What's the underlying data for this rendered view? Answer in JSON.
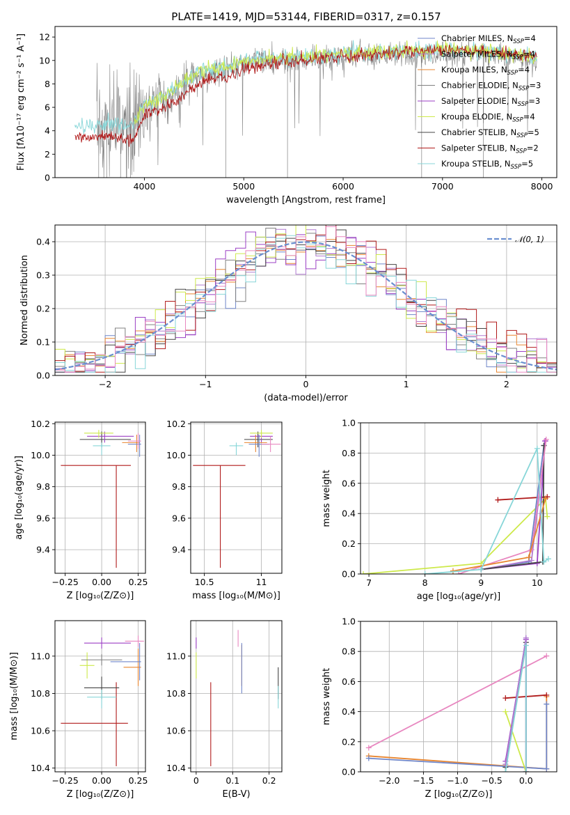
{
  "colors": {
    "chabrier_miles": "#6f86c9",
    "salpeter_miles": "#b07ad0",
    "kroupa_miles": "#e8852e",
    "chabrier_elodie": "#808080",
    "salpeter_elodie": "#9b3fc4",
    "kroupa_elodie": "#cde94a",
    "chabrier_stelib": "#444444",
    "salpeter_stelib": "#b01a1a",
    "kroupa_stelib": "#87d6d8",
    "pink": "#e887c0",
    "gauss": "#6a8fd0"
  },
  "chart_data": [
    {
      "id": "spectrum",
      "type": "line",
      "title": "PLATE=1419, MJD=53144, FIBERID=0317, z=0.157",
      "xlabel": "wavelength [Angstrom, rest frame]",
      "ylabel": "Flux [fλ10⁻¹⁷ erg cm⁻² s⁻¹ A⁻¹]",
      "xlim": [
        3100,
        8150
      ],
      "ylim": [
        0,
        12.9
      ],
      "xticks": [
        4000,
        5000,
        6000,
        7000,
        8000
      ],
      "yticks": [
        0,
        2,
        4,
        6,
        8,
        10,
        12
      ],
      "legend_position": "right",
      "legend": [
        {
          "label": "Chabrier MILES, N",
          "sub": "SSP",
          "suffix": "=4",
          "color_key": "chabrier_miles"
        },
        {
          "label": "Salpeter MILES, N",
          "sub": "SSP",
          "suffix": "=4",
          "color_key": "salpeter_miles"
        },
        {
          "label": "Kroupa MILES, N",
          "sub": "SSP",
          "suffix": "=4",
          "color_key": "kroupa_miles"
        },
        {
          "label": "Chabrier ELODIE, N",
          "sub": "SSP",
          "suffix": "=3",
          "color_key": "chabrier_elodie"
        },
        {
          "label": "Salpeter ELODIE, N",
          "sub": "SSP",
          "suffix": "=3",
          "color_key": "salpeter_elodie"
        },
        {
          "label": "Kroupa ELODIE, N",
          "sub": "SSP",
          "suffix": "=4",
          "color_key": "kroupa_elodie"
        },
        {
          "label": "Chabrier STELIB, N",
          "sub": "SSP",
          "suffix": "=5",
          "color_key": "chabrier_stelib"
        },
        {
          "label": "Salpeter STELIB, N",
          "sub": "SSP",
          "suffix": "=2",
          "color_key": "salpeter_stelib"
        },
        {
          "label": "Kroupa STELIB, N",
          "sub": "SSP",
          "suffix": "=5",
          "color_key": "kroupa_stelib"
        }
      ],
      "model_trend": {
        "x": [
          3300,
          3500,
          3700,
          3900,
          4000,
          4200,
          4400,
          4600,
          4800,
          5000,
          5200,
          5500,
          5800,
          6000,
          6300,
          6600,
          6900,
          7200,
          7500,
          7800,
          7950
        ],
        "y_stelib_salpeter": [
          3.4,
          3.5,
          3.4,
          3.3,
          5.4,
          6.0,
          7.0,
          8.2,
          8.6,
          9.2,
          9.6,
          9.9,
          10.2,
          10.4,
          10.5,
          10.7,
          10.8,
          10.9,
          10.6,
          10.5,
          10.3
        ],
        "y_kroupa_stelib": [
          4.3,
          4.4,
          4.6,
          4.6,
          6.2,
          7.0,
          8.2,
          9.2,
          9.4,
          10.0,
          10.2,
          10.3,
          10.4,
          10.6,
          10.7,
          10.8,
          10.9,
          10.9,
          10.7,
          10.4,
          10.3
        ]
      }
    },
    {
      "id": "residuals",
      "type": "histogram",
      "xlabel": "(data-model)/error",
      "ylabel": "Normed distribution",
      "xlim": [
        -2.5,
        2.5
      ],
      "ylim": [
        0,
        0.45
      ],
      "xticks": [
        -2,
        -1,
        0,
        1,
        2
      ],
      "yticks": [
        0.0,
        0.1,
        0.2,
        0.3,
        0.4
      ],
      "legend_position": "top-right",
      "legend_label": "𝒩(0, 1)",
      "bin_width": 0.1
    },
    {
      "id": "age_vs_Z",
      "type": "errorbar",
      "xlabel": "Z [log₁₀(Z/Z⊙)]",
      "ylabel": "age  [log₁₀(age/yr)]",
      "xlim": [
        -0.32,
        0.3
      ],
      "ylim": [
        9.25,
        10.21
      ],
      "xticks": [
        -0.25,
        0.0,
        0.25
      ],
      "xticklabels": [
        "−0.25",
        "0.00",
        "0.25"
      ],
      "yticks": [
        9.4,
        9.6,
        9.8,
        10.0,
        10.2
      ],
      "points": [
        {
          "x": 0.1,
          "y": 9.935,
          "xerr": [
            0.38,
            0.1
          ],
          "yerr": [
            0.65,
            0.0
          ],
          "color_key": "salpeter_stelib"
        },
        {
          "x": 0.0,
          "y": 10.1,
          "xerr": [
            0.15,
            0.2
          ],
          "yerr": [
            0.05,
            0.05
          ],
          "color_key": "chabrier_stelib"
        },
        {
          "x": 0.02,
          "y": 10.12,
          "xerr": [
            0.12,
            0.2
          ],
          "yerr": [
            0.04,
            0.03
          ],
          "color_key": "salpeter_elodie"
        },
        {
          "x": -0.02,
          "y": 10.14,
          "xerr": [
            0.1,
            0.1
          ],
          "yerr": [
            0.03,
            0.02
          ],
          "color_key": "kroupa_elodie"
        },
        {
          "x": 0.24,
          "y": 10.08,
          "xerr": [
            0.1,
            0.02
          ],
          "yerr": [
            0.06,
            0.05
          ],
          "color_key": "kroupa_miles"
        },
        {
          "x": 0.26,
          "y": 10.07,
          "xerr": [
            0.08,
            0.01
          ],
          "yerr": [
            0.08,
            0.06
          ],
          "color_key": "chabrier_miles"
        },
        {
          "x": 0.25,
          "y": 10.09,
          "xerr": [
            0.07,
            0.02
          ],
          "yerr": [
            0.05,
            0.05
          ],
          "color_key": "pink"
        },
        {
          "x": 0.0,
          "y": 10.06,
          "xerr": [
            0.06,
            0.06
          ],
          "yerr": [
            0.06,
            0.02
          ],
          "color_key": "kroupa_stelib"
        }
      ]
    },
    {
      "id": "age_vs_mass",
      "type": "errorbar",
      "xlabel": "mass [log₁₀(M/M⊙)]",
      "xlim": [
        10.38,
        11.18
      ],
      "ylim": [
        9.25,
        10.21
      ],
      "xticks": [
        10.5,
        11.0
      ],
      "yticks": [
        9.4,
        9.6,
        9.8,
        10.0,
        10.2
      ],
      "points": [
        {
          "x": 10.64,
          "y": 9.935,
          "xerr": [
            0.24,
            0.22
          ],
          "yerr": [
            0.65,
            0.0
          ],
          "color_key": "salpeter_stelib"
        },
        {
          "x": 10.97,
          "y": 10.1,
          "xerr": [
            0.12,
            0.13
          ],
          "yerr": [
            0.05,
            0.05
          ],
          "color_key": "chabrier_stelib"
        },
        {
          "x": 11.0,
          "y": 10.12,
          "xerr": [
            0.1,
            0.1
          ],
          "yerr": [
            0.04,
            0.03
          ],
          "color_key": "salpeter_elodie"
        },
        {
          "x": 11.0,
          "y": 10.14,
          "xerr": [
            0.1,
            0.1
          ],
          "yerr": [
            0.03,
            0.02
          ],
          "color_key": "kroupa_elodie"
        },
        {
          "x": 10.95,
          "y": 10.08,
          "xerr": [
            0.1,
            0.1
          ],
          "yerr": [
            0.06,
            0.05
          ],
          "color_key": "kroupa_miles"
        },
        {
          "x": 10.98,
          "y": 10.07,
          "xerr": [
            0.09,
            0.09
          ],
          "yerr": [
            0.08,
            0.06
          ],
          "color_key": "chabrier_miles"
        },
        {
          "x": 11.08,
          "y": 10.07,
          "xerr": [
            0.08,
            0.09
          ],
          "yerr": [
            0.05,
            0.05
          ],
          "color_key": "pink"
        },
        {
          "x": 10.78,
          "y": 10.06,
          "xerr": [
            0.06,
            0.06
          ],
          "yerr": [
            0.06,
            0.02
          ],
          "color_key": "kroupa_stelib"
        }
      ]
    },
    {
      "id": "massweight_vs_age",
      "type": "line",
      "xlabel": "age  [log₁₀(age/yr)]",
      "ylabel": "mass weight",
      "xlim": [
        6.85,
        10.35
      ],
      "ylim": [
        0,
        1.0
      ],
      "xticks": [
        7,
        8,
        9,
        10
      ],
      "yticks": [
        0.0,
        0.2,
        0.4,
        0.6,
        0.8,
        1.0
      ],
      "series": [
        {
          "color_key": "kroupa_elodie",
          "x": [
            6.9,
            9.0,
            10.15,
            10.18
          ],
          "y": [
            0.0,
            0.07,
            0.5,
            0.38
          ]
        },
        {
          "color_key": "salpeter_stelib",
          "x": [
            9.3,
            10.18
          ],
          "y": [
            0.49,
            0.51
          ]
        },
        {
          "color_key": "chabrier_miles",
          "x": [
            9.0,
            9.85,
            10.12
          ],
          "y": [
            0.03,
            0.08,
            0.85
          ]
        },
        {
          "color_key": "salpeter_miles",
          "x": [
            9.0,
            9.9,
            10.15
          ],
          "y": [
            0.03,
            0.09,
            0.88
          ]
        },
        {
          "color_key": "salpeter_elodie",
          "x": [
            9.0,
            10.0,
            10.14
          ],
          "y": [
            0.03,
            0.07,
            0.88
          ]
        },
        {
          "color_key": "chabrier_stelib",
          "x": [
            9.0,
            10.1,
            10.12
          ],
          "y": [
            0.03,
            0.08,
            0.85
          ]
        },
        {
          "color_key": "pink",
          "x": [
            8.6,
            9.9,
            10.16
          ],
          "y": [
            0.0,
            0.16,
            0.89
          ]
        },
        {
          "color_key": "kroupa_miles",
          "x": [
            8.5,
            9.85,
            10.15
          ],
          "y": [
            0.02,
            0.11,
            0.5
          ]
        },
        {
          "color_key": "kroupa_stelib",
          "x": [
            8.0,
            9.0,
            10.0,
            10.12,
            10.2
          ],
          "y": [
            0.0,
            0.03,
            0.83,
            0.08,
            0.1
          ]
        }
      ]
    },
    {
      "id": "mass_vs_Z",
      "type": "errorbar",
      "xlabel": "Z [log₁₀(Z/Z⊙)]",
      "ylabel": "mass [log₁₀(M/M⊙)]",
      "xlim": [
        -0.32,
        0.3
      ],
      "ylim": [
        10.38,
        11.19
      ],
      "xticks": [
        -0.25,
        0.0,
        0.25
      ],
      "xticklabels": [
        "−0.25",
        "0.00",
        "0.25"
      ],
      "yticks": [
        10.4,
        10.6,
        10.8,
        11.0
      ],
      "points": [
        {
          "x": 0.1,
          "y": 10.64,
          "xerr": [
            0.38,
            0.08
          ],
          "yerr": [
            0.23,
            0.22
          ],
          "color_key": "salpeter_stelib"
        },
        {
          "x": 0.0,
          "y": 10.83,
          "xerr": [
            0.12,
            0.12
          ],
          "yerr": [
            0.06,
            0.06
          ],
          "color_key": "chabrier_stelib"
        },
        {
          "x": 0.0,
          "y": 11.07,
          "xerr": [
            0.12,
            0.2
          ],
          "yerr": [
            0.03,
            0.03
          ],
          "color_key": "salpeter_elodie"
        },
        {
          "x": -0.1,
          "y": 10.95,
          "xerr": [
            0.05,
            0.05
          ],
          "yerr": [
            0.07,
            0.07
          ],
          "color_key": "kroupa_elodie"
        },
        {
          "x": 0.25,
          "y": 10.94,
          "xerr": [
            0.1,
            0.02
          ],
          "yerr": [
            0.1,
            0.1
          ],
          "color_key": "kroupa_miles"
        },
        {
          "x": 0.26,
          "y": 10.97,
          "xerr": [
            0.2,
            0.01
          ],
          "yerr": [
            0.1,
            0.1
          ],
          "color_key": "chabrier_miles"
        },
        {
          "x": 0.25,
          "y": 11.08,
          "xerr": [
            0.09,
            0.04
          ],
          "yerr": [
            0.03,
            0.03
          ],
          "color_key": "pink"
        },
        {
          "x": 0.0,
          "y": 10.78,
          "xerr": [
            0.1,
            0.1
          ],
          "yerr": [
            0.06,
            0.04
          ],
          "color_key": "kroupa_stelib"
        },
        {
          "x": 0.0,
          "y": 10.98,
          "xerr": [
            0.14,
            0.14
          ],
          "yerr": [
            0.03,
            0.03
          ],
          "color_key": "chabrier_elodie"
        }
      ]
    },
    {
      "id": "mass_vs_ebv",
      "type": "errorbar",
      "xlabel": "E(B-V)",
      "xlim": [
        -0.015,
        0.235
      ],
      "ylim": [
        10.38,
        11.19
      ],
      "xticks": [
        0.0,
        0.1,
        0.2
      ],
      "yticks": [
        10.4,
        10.6,
        10.8,
        11.0
      ],
      "points": [
        {
          "x": 0.04,
          "y": 10.64,
          "xerr": [
            0,
            0
          ],
          "yerr": [
            0.23,
            0.22
          ],
          "color_key": "salpeter_stelib"
        },
        {
          "x": 0.225,
          "y": 10.83,
          "xerr": [
            0,
            0
          ],
          "yerr": [
            0.06,
            0.11
          ],
          "color_key": "chabrier_stelib"
        },
        {
          "x": 0.0,
          "y": 11.07,
          "xerr": [
            0,
            0
          ],
          "yerr": [
            0.03,
            0.03
          ],
          "color_key": "salpeter_elodie"
        },
        {
          "x": 0.0,
          "y": 10.95,
          "xerr": [
            0,
            0
          ],
          "yerr": [
            0.07,
            0.07
          ],
          "color_key": "kroupa_elodie"
        },
        {
          "x": 0.125,
          "y": 10.94,
          "xerr": [
            0,
            0
          ],
          "yerr": [
            0.1,
            0.12
          ],
          "color_key": "kroupa_miles"
        },
        {
          "x": 0.125,
          "y": 10.97,
          "xerr": [
            0,
            0
          ],
          "yerr": [
            0.17,
            0.1
          ],
          "color_key": "chabrier_miles"
        },
        {
          "x": 0.115,
          "y": 11.08,
          "xerr": [
            0,
            0
          ],
          "yerr": [
            0.03,
            0.06
          ],
          "color_key": "pink"
        },
        {
          "x": 0.225,
          "y": 10.78,
          "xerr": [
            0,
            0
          ],
          "yerr": [
            0.06,
            0.06
          ],
          "color_key": "kroupa_stelib"
        }
      ]
    },
    {
      "id": "massweight_vs_Z",
      "type": "line",
      "xlabel": "Z [log₁₀(Z/Z⊙)]",
      "ylabel": "mass weight",
      "xlim": [
        -2.42,
        0.45
      ],
      "ylim": [
        0,
        1.0
      ],
      "xticks": [
        -2.0,
        -1.5,
        -1.0,
        -0.5,
        0.0
      ],
      "xticklabels": [
        "−2.0",
        "−1.5",
        "−1.0",
        "−0.5",
        "0.0"
      ],
      "yticks": [
        0.0,
        0.2,
        0.4,
        0.6,
        0.8,
        1.0
      ],
      "series": [
        {
          "color_key": "pink",
          "x": [
            -2.3,
            0.3
          ],
          "y": [
            0.16,
            0.77
          ]
        },
        {
          "color_key": "kroupa_miles",
          "x": [
            -2.3,
            0.3,
            0.3
          ],
          "y": [
            0.105,
            0.02,
            0.5
          ]
        },
        {
          "color_key": "chabrier_miles",
          "x": [
            -2.3,
            0.3,
            0.3
          ],
          "y": [
            0.09,
            0.02,
            0.45
          ]
        },
        {
          "color_key": "salpeter_stelib",
          "x": [
            -0.3,
            0.3
          ],
          "y": [
            0.49,
            0.51
          ]
        },
        {
          "color_key": "kroupa_elodie",
          "x": [
            -0.3,
            0.0
          ],
          "y": [
            0.4,
            0.0
          ]
        },
        {
          "color_key": "salpeter_elodie",
          "x": [
            -0.3,
            0.0,
            0.0
          ],
          "y": [
            0.07,
            0.88,
            0.0
          ]
        },
        {
          "color_key": "chabrier_stelib",
          "x": [
            -0.3,
            0.0,
            0.0
          ],
          "y": [
            0.03,
            0.86,
            0.0
          ]
        },
        {
          "color_key": "salpeter_miles",
          "x": [
            -0.3,
            0.0,
            0.0
          ],
          "y": [
            0.05,
            0.89,
            0.0
          ]
        },
        {
          "color_key": "kroupa_stelib",
          "x": [
            -0.3,
            0.0,
            0.0
          ],
          "y": [
            0.0,
            0.84,
            0.0
          ]
        }
      ]
    }
  ]
}
